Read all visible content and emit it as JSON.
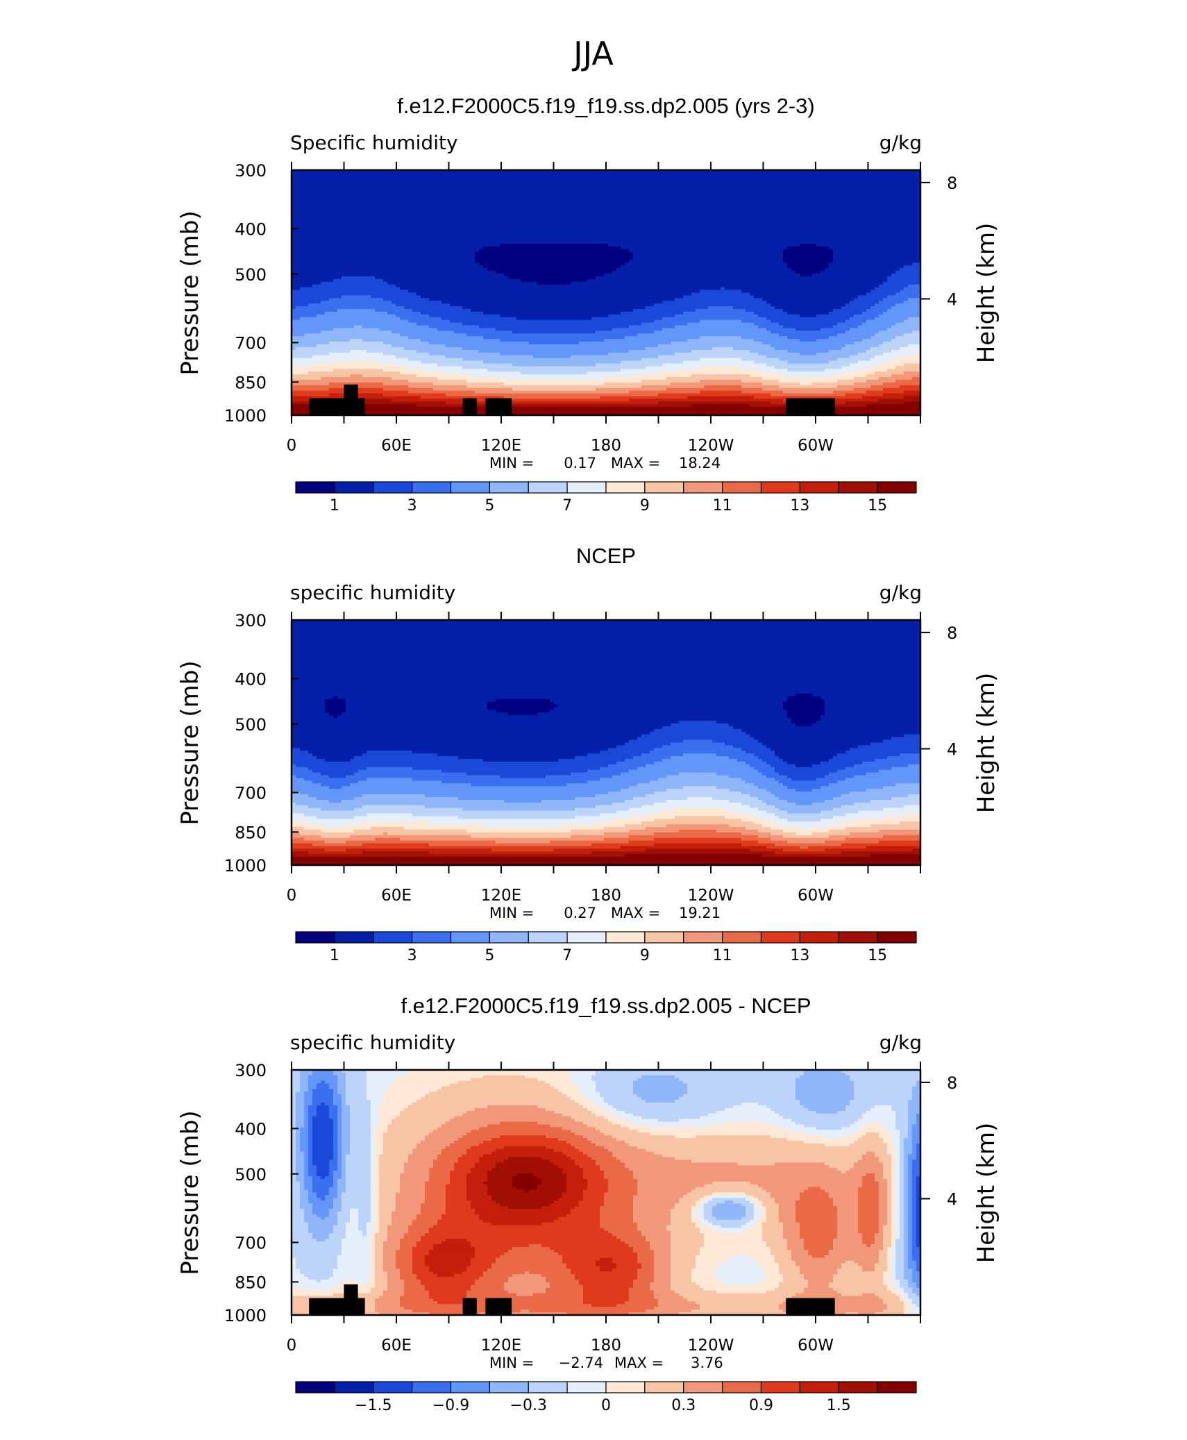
{
  "page_title": "JJA",
  "chart_data": [
    {
      "type": "contour",
      "title": "f.e12.F2000C5.f19_f19.ss.dp2.005 (yrs 2-3)",
      "left_string": "Specific humidity",
      "right_string": "g/kg",
      "ylabel": "Pressure (mb)",
      "ylabel_right": "Height (km)",
      "pressure_ticks": [
        "300",
        "400",
        "500",
        "700",
        "850",
        "1000"
      ],
      "height_ticks": [
        "8",
        "4"
      ],
      "lon_ticks": [
        "0",
        "60E",
        "120E",
        "180",
        "120W",
        "60W"
      ],
      "min_label": "MIN =",
      "min_value": "0.17",
      "max_label": "MAX =",
      "max_value": "18.24",
      "colorbar_labels": [
        "1",
        "3",
        "5",
        "7",
        "9",
        "11",
        "13",
        "15"
      ],
      "field": "model"
    },
    {
      "type": "contour",
      "title": "NCEP",
      "left_string": "specific humidity",
      "right_string": "g/kg",
      "ylabel": "Pressure (mb)",
      "ylabel_right": "Height (km)",
      "pressure_ticks": [
        "300",
        "400",
        "500",
        "700",
        "850",
        "1000"
      ],
      "height_ticks": [
        "8",
        "4"
      ],
      "lon_ticks": [
        "0",
        "60E",
        "120E",
        "180",
        "120W",
        "60W"
      ],
      "min_label": "MIN =",
      "min_value": "0.27",
      "max_label": "MAX =",
      "max_value": "19.21",
      "colorbar_labels": [
        "1",
        "3",
        "5",
        "7",
        "9",
        "11",
        "13",
        "15"
      ],
      "field": "obs"
    },
    {
      "type": "contour",
      "title": "f.e12.F2000C5.f19_f19.ss.dp2.005 - NCEP",
      "left_string": "specific humidity",
      "right_string": "g/kg",
      "ylabel": "Pressure (mb)",
      "ylabel_right": "Height (km)",
      "pressure_ticks": [
        "300",
        "400",
        "500",
        "700",
        "850",
        "1000"
      ],
      "height_ticks": [
        "8",
        "4"
      ],
      "lon_ticks": [
        "0",
        "60E",
        "120E",
        "180",
        "120W",
        "60W"
      ],
      "min_label": "MIN =",
      "min_value": "−2.74",
      "max_label": "MAX =",
      "max_value": "3.76",
      "colorbar_labels": [
        "−1.5",
        "−0.9",
        "−0.3",
        "0",
        "0.3",
        "0.9",
        "1.5"
      ],
      "field": "diff"
    }
  ],
  "palette": [
    "#000080",
    "#0520a8",
    "#1a48d8",
    "#3a70f0",
    "#6296f8",
    "#8fb6f8",
    "#bcd4fa",
    "#e6effc",
    "#fde9d6",
    "#f8c4a6",
    "#f2987a",
    "#ea6a47",
    "#e03a1c",
    "#c41f0a",
    "#a00e04",
    "#840000"
  ]
}
